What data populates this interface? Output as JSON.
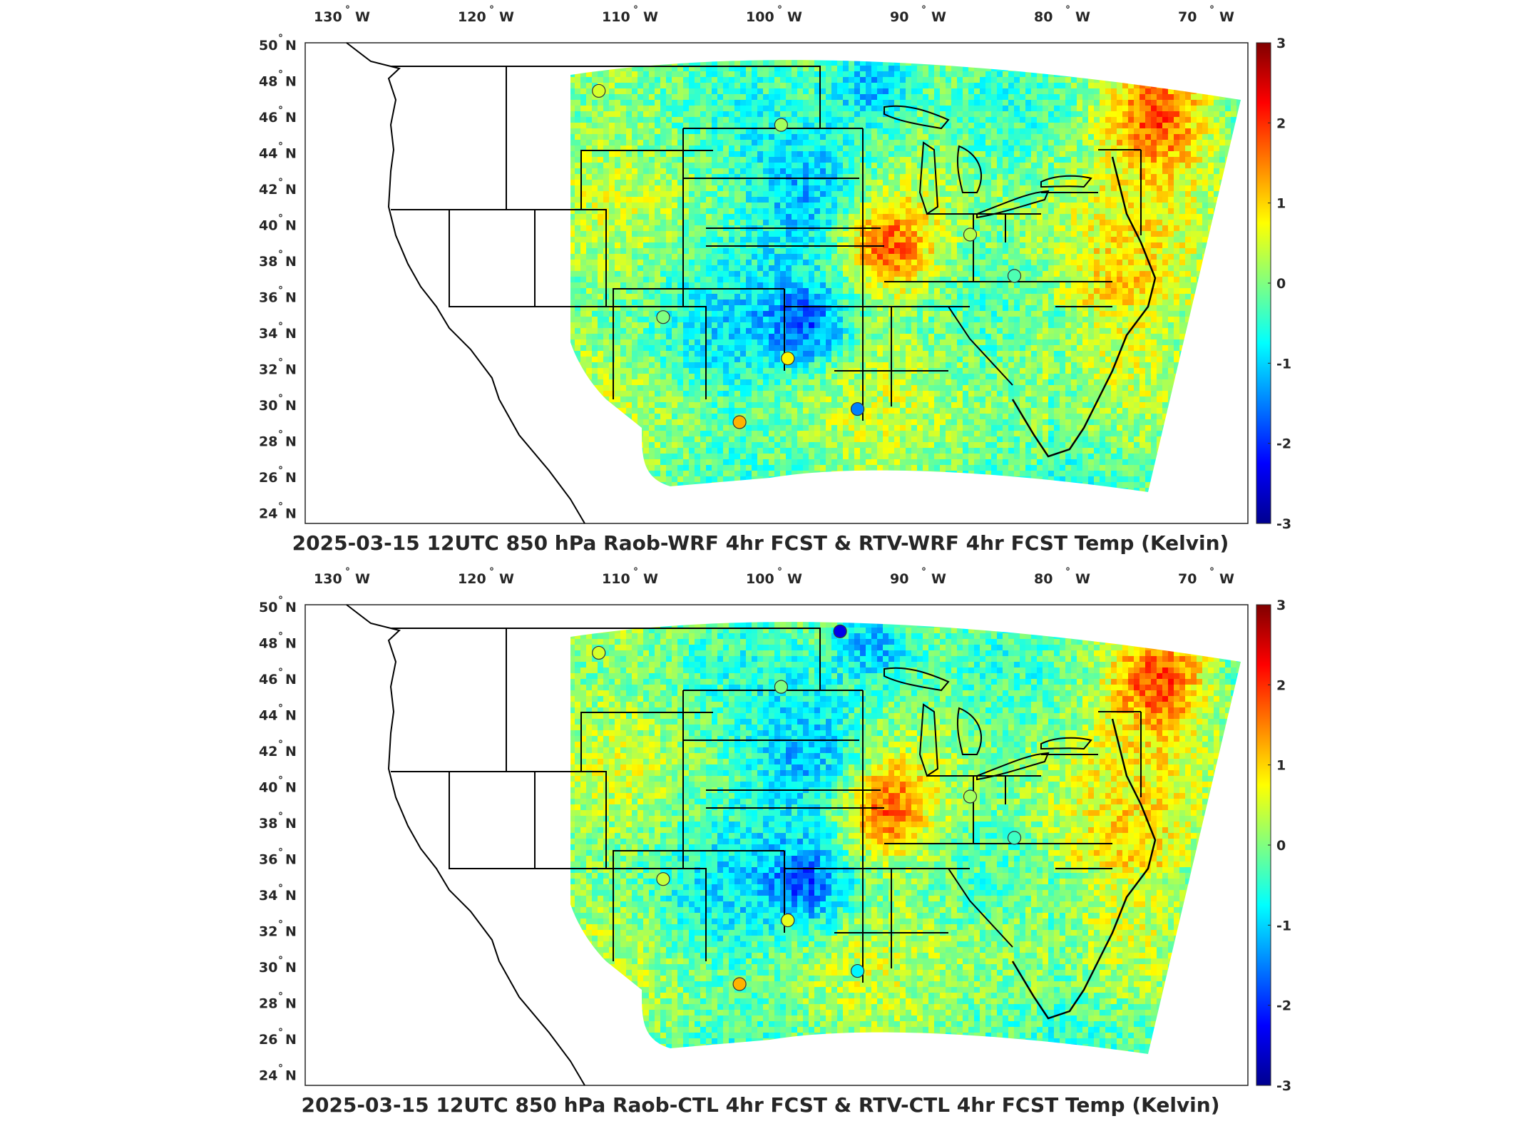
{
  "panels": [
    {
      "title": "2025-03-15 12UTC 850 hPa Raob-WRF 4hr FCST & RTV-WRF 4hr FCST Temp (Kelvin)",
      "stations": [
        {
          "lon": -111.4,
          "lat": 47.4,
          "value": 0.5
        },
        {
          "lon": -97.8,
          "lat": 45.5,
          "value": 0.2
        },
        {
          "lon": -106.6,
          "lat": 35.0,
          "value": 0.0
        },
        {
          "lon": -97.3,
          "lat": 32.8,
          "value": 0.8
        },
        {
          "lon": -100.9,
          "lat": 29.4,
          "value": 1.2
        },
        {
          "lon": -92.1,
          "lat": 30.1,
          "value": -1.5
        },
        {
          "lon": -83.7,
          "lat": 39.4,
          "value": 0.3
        },
        {
          "lon": -80.4,
          "lat": 37.2,
          "value": -0.3
        }
      ]
    },
    {
      "title": "2025-03-15 12UTC 850 hPa Raob-CTL 4hr FCST & RTV-CTL 4hr FCST Temp (Kelvin)",
      "stations": [
        {
          "lon": -111.4,
          "lat": 47.4,
          "value": 0.5
        },
        {
          "lon": -97.8,
          "lat": 45.5,
          "value": 0.0
        },
        {
          "lon": -106.6,
          "lat": 35.0,
          "value": 0.4
        },
        {
          "lon": -97.3,
          "lat": 32.8,
          "value": 0.6
        },
        {
          "lon": -100.9,
          "lat": 29.4,
          "value": 1.2
        },
        {
          "lon": -92.1,
          "lat": 30.1,
          "value": -0.8
        },
        {
          "lon": -93.4,
          "lat": 48.6,
          "value": -2.4
        },
        {
          "lon": -83.7,
          "lat": 39.4,
          "value": 0.2
        },
        {
          "lon": -80.4,
          "lat": 37.2,
          "value": -0.4
        }
      ]
    }
  ],
  "map": {
    "lon_ticks": [
      "130",
      "120",
      "110",
      "100",
      "90",
      "80",
      "70"
    ],
    "lat_ticks": [
      "50",
      "48",
      "46",
      "44",
      "42",
      "40",
      "38",
      "36",
      "34",
      "32",
      "30",
      "28",
      "26",
      "24"
    ],
    "lon_hemisphere": "W",
    "lat_hemisphere": "N",
    "degree_symbol": "°"
  },
  "colorbar": {
    "min": -3,
    "max": 3,
    "ticks": [
      "3",
      "2",
      "1",
      "0",
      "-1",
      "-2",
      "-3"
    ],
    "colors": [
      "#00008f",
      "#0000ff",
      "#0080ff",
      "#00ffff",
      "#80ff80",
      "#ffff00",
      "#ff8000",
      "#ff0000",
      "#800000"
    ]
  },
  "colors": {
    "frame": "#262626",
    "state_lines": "#000000"
  }
}
